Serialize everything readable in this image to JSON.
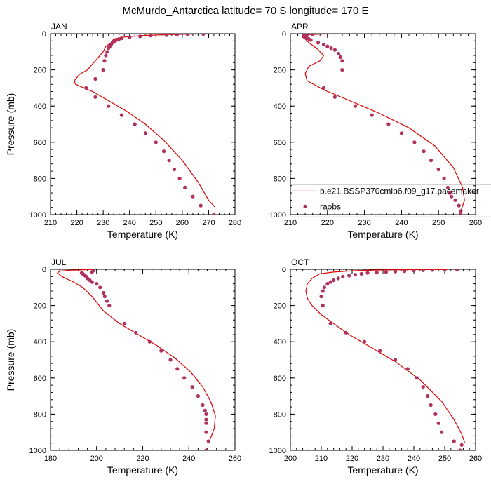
{
  "title": "McMurdo_Antarctica  latitude= 70 S longitude= 170 E",
  "legend": {
    "model_label": "b.e21.BSSP370cmip6.f09_g17.pacemaker",
    "obs_label": "raobs"
  },
  "colors": {
    "model": "#e00000",
    "obs": "#b03060"
  },
  "chart_data": [
    {
      "type": "line",
      "panel": "JAN",
      "xlabel": "Temperature (K)",
      "ylabel": "Pressure (mb)",
      "xlim": [
        210,
        280
      ],
      "ylim": [
        1000,
        0
      ],
      "xticks": [
        210,
        220,
        230,
        240,
        250,
        260,
        270,
        280
      ],
      "yticks": [
        0,
        200,
        400,
        600,
        800,
        1000
      ],
      "series": [
        {
          "name": "model",
          "kind": "line",
          "x": [
            272.5,
            265,
            255,
            245,
            237,
            234,
            233,
            231,
            230,
            227,
            224,
            221,
            219,
            219.5,
            226,
            232,
            239,
            246,
            253,
            260,
            266,
            270,
            272.5
          ],
          "p": [
            1,
            2,
            5,
            10,
            20,
            30,
            50,
            70,
            100,
            150,
            200,
            225,
            260,
            280,
            320,
            370,
            430,
            500,
            590,
            700,
            820,
            920,
            960
          ]
        },
        {
          "name": "raobs",
          "kind": "scatter",
          "x": [
            268,
            262,
            258,
            254,
            248,
            244,
            240,
            237,
            236,
            235,
            234.5,
            234,
            233.5,
            233,
            232.5,
            232,
            231.5,
            231,
            230.5,
            230,
            227,
            223.5,
            227,
            232,
            237,
            242,
            246,
            250,
            253,
            255,
            257,
            259,
            261,
            264,
            267,
            272
          ],
          "p": [
            2,
            4,
            6,
            8,
            10,
            15,
            20,
            25,
            30,
            35,
            40,
            45,
            50,
            60,
            70,
            80,
            100,
            120,
            150,
            200,
            250,
            300,
            350,
            400,
            450,
            500,
            550,
            600,
            650,
            700,
            750,
            800,
            850,
            900,
            950,
            1000
          ]
        }
      ]
    },
    {
      "type": "line",
      "panel": "APR",
      "xlabel": "Temperature (K)",
      "ylabel": "",
      "xlim": [
        210,
        260
      ],
      "ylim": [
        1000,
        0
      ],
      "xticks": [
        210,
        220,
        230,
        240,
        250,
        260
      ],
      "yticks": [
        0,
        200,
        400,
        600,
        800,
        1000
      ],
      "series": [
        {
          "name": "model",
          "kind": "line",
          "x": [
            225,
            219,
            215,
            213.5,
            213.3,
            214,
            215,
            217,
            219,
            218,
            215,
            214,
            214.5,
            219,
            226,
            234,
            242,
            249,
            254,
            256.5,
            257,
            256,
            256
          ],
          "p": [
            1,
            2,
            5,
            10,
            20,
            30,
            50,
            80,
            120,
            150,
            180,
            220,
            260,
            310,
            370,
            440,
            520,
            620,
            740,
            850,
            920,
            980,
            1005
          ]
        },
        {
          "name": "raobs",
          "kind": "scatter",
          "x": [
            216,
            214.5,
            213.8,
            213.5,
            213.8,
            214,
            214.5,
            215,
            215.5,
            217.5,
            219,
            220,
            221,
            222,
            223,
            223.5,
            224,
            224,
            219,
            222,
            227.5,
            232,
            236.5,
            240,
            243.5,
            246,
            248,
            250,
            251.5,
            252.5,
            253,
            253.5,
            254.5,
            255.5,
            256,
            256
          ],
          "p": [
            3,
            5,
            8,
            10,
            15,
            20,
            25,
            30,
            35,
            50,
            60,
            70,
            80,
            90,
            110,
            130,
            150,
            200,
            300,
            350,
            400,
            450,
            500,
            550,
            600,
            650,
            700,
            750,
            800,
            850,
            880,
            900,
            920,
            950,
            980,
            1000
          ]
        }
      ]
    },
    {
      "type": "line",
      "panel": "JUL",
      "xlabel": "Temperature (K)",
      "ylabel": "Pressure (mb)",
      "xlim": [
        180,
        260
      ],
      "ylim": [
        1000,
        0
      ],
      "xticks": [
        180,
        200,
        220,
        240,
        260
      ],
      "yticks": [
        0,
        200,
        400,
        600,
        800,
        1000
      ],
      "series": [
        {
          "name": "model",
          "kind": "line",
          "x": [
            198,
            193,
            188,
            184,
            183,
            185,
            190,
            194,
            198,
            203,
            210,
            218,
            226,
            234,
            241,
            246,
            249.5,
            251.5,
            251,
            249.5,
            248.5
          ],
          "p": [
            1,
            3,
            5,
            10,
            20,
            40,
            70,
            100,
            150,
            230,
            300,
            360,
            420,
            490,
            570,
            650,
            730,
            810,
            880,
            930,
            960
          ]
        },
        {
          "name": "raobs",
          "kind": "scatter",
          "x": [
            198.5,
            198,
            193.5,
            194,
            194.5,
            195,
            195.5,
            196,
            197,
            198,
            200,
            201.5,
            203,
            203.5,
            204.5,
            205.5,
            212,
            217,
            223,
            228,
            232,
            235,
            238,
            241.5,
            244,
            246,
            247,
            247.5,
            247.5,
            247.5,
            247.5,
            248.5,
            247.5
          ],
          "p": [
            8,
            15,
            20,
            25,
            30,
            35,
            40,
            50,
            60,
            70,
            80,
            100,
            130,
            150,
            175,
            200,
            300,
            350,
            400,
            450,
            500,
            550,
            600,
            650,
            700,
            750,
            780,
            800,
            830,
            850,
            900,
            950,
            1000
          ]
        }
      ]
    },
    {
      "type": "line",
      "panel": "OCT",
      "xlabel": "Temperature (K)",
      "ylabel": "",
      "xlim": [
        200,
        260
      ],
      "ylim": [
        1000,
        0
      ],
      "xticks": [
        200,
        210,
        220,
        230,
        240,
        250,
        260
      ],
      "yticks": [
        0,
        200,
        400,
        600,
        800,
        1000
      ],
      "series": [
        {
          "name": "model",
          "kind": "line",
          "x": [
            251,
            238,
            228,
            220,
            214,
            209.5,
            207,
            205.5,
            205,
            205.5,
            207,
            210,
            214,
            219,
            226,
            234,
            242,
            249,
            253,
            255.5,
            256.5
          ],
          "p": [
            1,
            2,
            4,
            8,
            15,
            25,
            50,
            80,
            120,
            160,
            200,
            250,
            300,
            360,
            430,
            510,
            610,
            730,
            830,
            910,
            960
          ]
        },
        {
          "name": "raobs",
          "kind": "scatter",
          "x": [
            254,
            250,
            246,
            243,
            240,
            237,
            234,
            231,
            228,
            225,
            223,
            221,
            219,
            217,
            215.5,
            214,
            213,
            212,
            211,
            210.5,
            210,
            210.5,
            213,
            218,
            224,
            229,
            234,
            238,
            241,
            243,
            244.5,
            245.5,
            247,
            248,
            249,
            253,
            255.5,
            255
          ],
          "p": [
            2,
            3,
            4,
            5,
            7,
            10,
            12,
            15,
            18,
            20,
            25,
            30,
            35,
            40,
            50,
            60,
            70,
            80,
            100,
            120,
            150,
            200,
            300,
            350,
            400,
            450,
            500,
            550,
            600,
            650,
            700,
            750,
            800,
            850,
            900,
            950,
            970,
            1000
          ]
        }
      ]
    }
  ]
}
